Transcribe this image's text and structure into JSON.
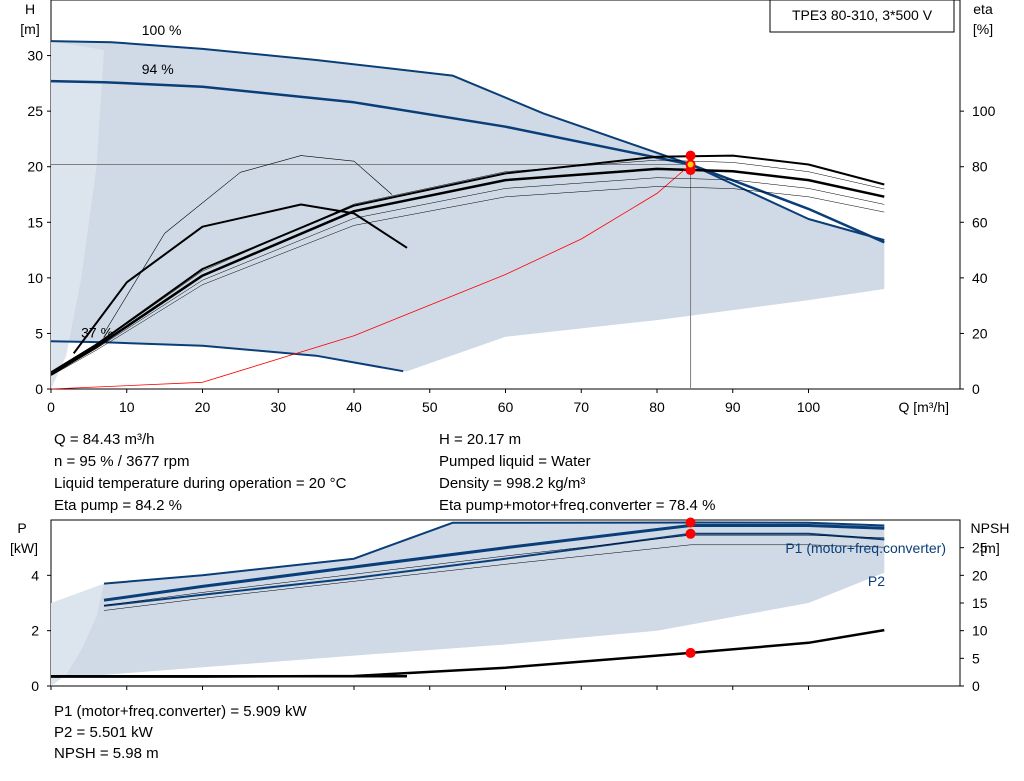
{
  "title_box": "TPE3 80-310, 3*500 V",
  "colors": {
    "curve": "#0a3e78",
    "fill": "#cfdae6",
    "fill_light": "#dce5ee",
    "system": "#ff0000",
    "duty": "#ff0000",
    "eta": "#000000"
  },
  "chart_data": [
    {
      "type": "line",
      "name": "head-curve",
      "y_axis_left": {
        "label_top": "H",
        "label_unit": "[m]",
        "ticks": [
          0,
          5,
          10,
          15,
          20,
          25,
          30
        ],
        "range": [
          0,
          35
        ]
      },
      "y_axis_right": {
        "label_top": "eta",
        "label_unit": "[%]",
        "ticks": [
          0,
          20,
          40,
          60,
          80,
          100
        ],
        "range": [
          0,
          140
        ]
      },
      "x_axis": {
        "label": "Q [m³/h]",
        "ticks": [
          0,
          10,
          20,
          30,
          40,
          50,
          60,
          70,
          80,
          90,
          100
        ],
        "range": [
          0,
          120
        ]
      },
      "speed_labels": [
        {
          "text": "100 %",
          "x": 10,
          "y": 32.3
        },
        {
          "text": "94 %",
          "x": 10,
          "y": 28.8
        },
        {
          "text": "37 %",
          "x": 2,
          "y": 5.1
        }
      ],
      "series": [
        {
          "label": "100 %",
          "x": [
            0,
            8,
            20,
            35,
            53,
            65,
            84.43,
            100,
            110
          ],
          "y": [
            31.3,
            31.2,
            30.6,
            29.6,
            28.2,
            24.8,
            20.2,
            15.3,
            13.4
          ]
        },
        {
          "label": "94 %",
          "x": [
            0,
            7,
            20,
            40,
            60,
            84.43,
            100,
            110
          ],
          "y": [
            27.7,
            27.6,
            27.2,
            25.8,
            23.6,
            20.2,
            16.2,
            13.2
          ]
        },
        {
          "label": "37 %",
          "x": [
            0,
            7,
            20,
            35,
            46.5
          ],
          "y": [
            4.3,
            4.2,
            3.9,
            3.0,
            1.6
          ]
        },
        {
          "x": [
            0,
            6,
            20,
            40,
            60,
            80,
            90,
            100,
            110
          ],
          "y": [
            1.5,
            4.0,
            10.8,
            16.5,
            19.4,
            20.9,
            21.0,
            20.2,
            18.4
          ]
        },
        {
          "x": [
            0,
            6,
            20,
            40,
            60,
            80,
            90,
            100,
            110
          ],
          "y": [
            1.3,
            3.8,
            10.2,
            16.0,
            18.8,
            19.8,
            19.6,
            18.8,
            17.3
          ]
        },
        {
          "x": [
            3,
            10,
            20,
            33,
            40,
            47
          ],
          "y": [
            3.2,
            9.6,
            14.6,
            16.6,
            15.8,
            12.7
          ]
        },
        {
          "x": [
            7,
            15,
            25,
            33,
            40,
            45
          ],
          "y": [
            5.0,
            14.0,
            19.5,
            21.0,
            20.5,
            17.5
          ]
        },
        {
          "x": [
            0,
            20,
            40,
            60,
            70,
            80,
            84.43
          ],
          "y": [
            0,
            0.6,
            4.8,
            10.3,
            13.5,
            17.6,
            20.2
          ]
        }
      ],
      "duty_points": [
        {
          "x": 84.43,
          "y": 20.2
        },
        {
          "x": 84.43,
          "y": 19.7
        },
        {
          "x": 84.43,
          "y": 21.0
        }
      ]
    },
    {
      "type": "line",
      "name": "power-curve",
      "y_axis_left": {
        "label_top": "P",
        "label_unit": "[kW]",
        "ticks": [
          0,
          2,
          4
        ],
        "range": [
          0,
          6
        ]
      },
      "y_axis_right": {
        "label_top": "NPSH",
        "label_unit": "[m]",
        "ticks": [
          0,
          5,
          10,
          15,
          20,
          25
        ],
        "range": [
          0,
          30
        ]
      },
      "x_axis": {
        "range": [
          0,
          120
        ]
      },
      "series": [
        {
          "label": "P1 (motor+freq.converter)",
          "x": [
            7,
            20,
            40,
            53,
            84.43,
            100,
            110
          ],
          "y": [
            3.7,
            4.0,
            4.6,
            5.9,
            5.91,
            5.9,
            5.8
          ]
        },
        {
          "x": [
            7,
            20,
            40,
            60,
            84.43,
            100,
            110
          ],
          "y": [
            3.1,
            3.6,
            4.3,
            5.0,
            5.8,
            5.8,
            5.7
          ]
        },
        {
          "label": "P2",
          "x": [
            7,
            20,
            40,
            60,
            84.43,
            100,
            110
          ],
          "y": [
            2.9,
            3.3,
            3.9,
            4.6,
            5.5,
            5.5,
            5.3
          ]
        },
        {
          "label": "NPSH",
          "x": [
            0,
            20,
            40,
            60,
            84.43,
            100,
            110
          ],
          "y": [
            1.7,
            1.7,
            1.8,
            3.3,
            5.98,
            7.8,
            10.1
          ]
        }
      ],
      "duty_points": [
        {
          "x": 84.43,
          "y": 5.909
        },
        {
          "x": 84.43,
          "y": 5.501
        },
        {
          "x": 84.43,
          "y": 1.196
        }
      ]
    }
  ],
  "info_upper": {
    "col1": [
      "Q = 84.43 m³/h",
      "n = 95 % / 3677 rpm",
      "Liquid temperature during operation = 20 °C",
      "Eta pump = 84.2 %"
    ],
    "col2": [
      "H = 20.17 m",
      "Pumped liquid = Water",
      "Density = 998.2 kg/m³",
      "Eta pump+motor+freq.converter = 78.4 %"
    ]
  },
  "info_lower": [
    "P1 (motor+freq.converter) = 5.909 kW",
    "P2 = 5.501 kW",
    "NPSH = 5.98 m"
  ]
}
